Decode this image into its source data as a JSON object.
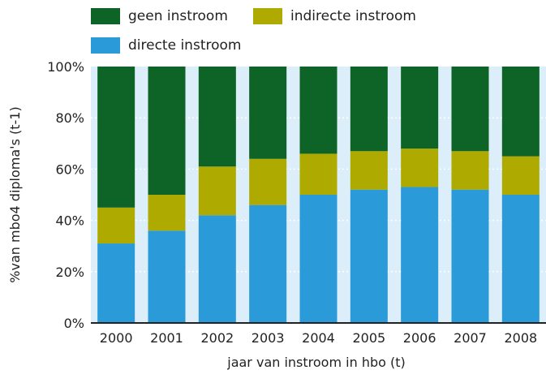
{
  "chart_data": {
    "type": "bar",
    "stacked": true,
    "categories": [
      "2000",
      "2001",
      "2002",
      "2003",
      "2004",
      "2005",
      "2006",
      "2007",
      "2008"
    ],
    "series": [
      {
        "name": "directe instroom",
        "color": "#2b9ad8",
        "values": [
          31,
          36,
          42,
          46,
          50,
          52,
          53,
          52,
          50
        ]
      },
      {
        "name": "indirecte instroom",
        "color": "#aeaa00",
        "values": [
          14,
          14,
          19,
          18,
          16,
          15,
          15,
          15,
          15
        ]
      },
      {
        "name": "geen instroom",
        "color": "#0e6327",
        "values": [
          55,
          50,
          39,
          36,
          34,
          33,
          32,
          33,
          35
        ]
      }
    ],
    "xlabel": "jaar van instroom in hbo (t)",
    "ylabel": "%van mbo4 diploma's (t-1)",
    "ylim": [
      0,
      100
    ],
    "yticks": [
      0,
      20,
      40,
      60,
      80,
      100
    ],
    "ytick_labels": [
      "0%",
      "20%",
      "40%",
      "60%",
      "80%",
      "100%"
    ],
    "grid": true,
    "legend_position": "top-left"
  },
  "colors": {
    "plot_background": "#dbeef9",
    "axis": "#222222"
  }
}
